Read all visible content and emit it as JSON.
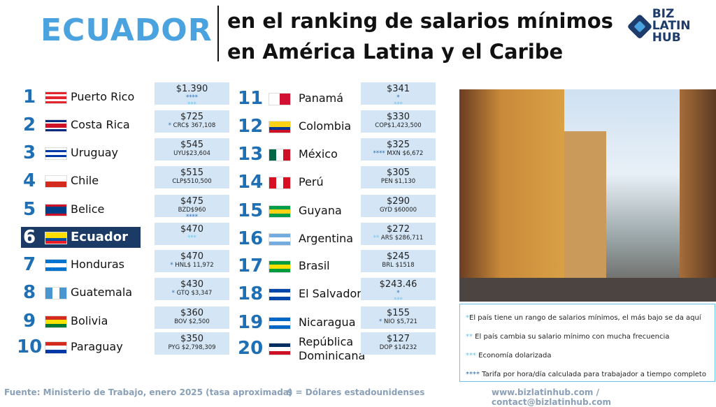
{
  "header": {
    "country": "ECUADOR",
    "subtitle_line1": "en el ranking de salarios mínimos",
    "subtitle_line2": "en América Latina y el Caribe",
    "logo_line1": "BIZ LATIN",
    "logo_line2": "HUB"
  },
  "accent_color": "#4aa3df",
  "highlight_color": "#1b3a66",
  "ranking": [
    {
      "rank": "1",
      "country": "Puerto Rico",
      "usd": "$1.390",
      "local": "",
      "stars_a": "****",
      "stars_b": "***",
      "flag": [
        "#e3262e",
        "#fff",
        "#e3262e",
        "#fff",
        "#e3262e"
      ]
    },
    {
      "rank": "2",
      "country": "Costa Rica",
      "usd": "$725",
      "local": "CRC$ 367,108",
      "stars_pre": "*",
      "flag": [
        "#002b7f",
        "#fff",
        "#ce1126",
        "#ce1126",
        "#fff",
        "#002b7f"
      ]
    },
    {
      "rank": "3",
      "country": "Uruguay",
      "usd": "$545",
      "local": "UYU$23,604",
      "flag": [
        "#fff",
        "#0038a8",
        "#fff",
        "#0038a8",
        "#fff"
      ]
    },
    {
      "rank": "4",
      "country": "Chile",
      "usd": "$515",
      "local": "CLP$510,500",
      "flag": [
        "#fff",
        "#d52b1e"
      ]
    },
    {
      "rank": "5",
      "country": "Belice",
      "usd": "$475",
      "local": "BZD$960",
      "stars_a": "****",
      "flag": [
        "#ce1126",
        "#003f87",
        "#003f87",
        "#003f87",
        "#ce1126"
      ]
    },
    {
      "rank": "6",
      "country": "Ecuador",
      "usd": "$470",
      "local": "",
      "stars_b": "***",
      "flag": [
        "#ffdd00",
        "#ffdd00",
        "#034ea2",
        "#ed1c24"
      ]
    },
    {
      "rank": "7",
      "country": "Honduras",
      "usd": "$470",
      "local": "HNL$ 11,972",
      "stars_pre": "*",
      "flag": [
        "#0073cf",
        "#fff",
        "#0073cf"
      ]
    },
    {
      "rank": "8",
      "country": "Guatemala",
      "usd": "$430",
      "local": "GTQ $3,347",
      "stars_pre": "*",
      "flag": [
        "#4997d0"
      ],
      "vflag": [
        "#4997d0",
        "#fff",
        "#4997d0"
      ]
    },
    {
      "rank": "9",
      "country": "Bolivia",
      "usd": "$360",
      "local": "BOV $2,500",
      "flag": [
        "#d52b1e",
        "#f9e300",
        "#007934"
      ]
    },
    {
      "rank": "10",
      "country": "Paraguay",
      "usd": "$350",
      "local": "PYG $2,798,309",
      "flag": [
        "#d52b1e",
        "#fff",
        "#0038a8"
      ]
    },
    {
      "rank": "11",
      "country": "Panamá",
      "usd": "$341",
      "local": "",
      "stars_a": "*",
      "stars_b": "***",
      "flag": [
        "#fff",
        "#d21034"
      ],
      "vflag": [
        "#fff",
        "#d21034"
      ]
    },
    {
      "rank": "12",
      "country": "Colombia",
      "usd": "$330",
      "local": "COP$1,423,500",
      "flag": [
        "#fcd116",
        "#fcd116",
        "#003893",
        "#ce1126"
      ]
    },
    {
      "rank": "13",
      "country": "México",
      "usd": "$325",
      "local": "MXN $6,672",
      "stars_pre": "****",
      "flag": [
        "#006847"
      ],
      "vflag": [
        "#006847",
        "#fff",
        "#ce1126"
      ]
    },
    {
      "rank": "14",
      "country": "Perú",
      "usd": "$305",
      "local": "PEN $1,130",
      "flag": [
        "#d91023"
      ],
      "vflag": [
        "#d91023",
        "#fff",
        "#d91023"
      ]
    },
    {
      "rank": "15",
      "country": "Guyana",
      "usd": "$290",
      "local": "GYD $60000",
      "flag": [
        "#009e49",
        "#fcd116",
        "#009e49"
      ]
    },
    {
      "rank": "16",
      "country": "Argentina",
      "usd": "$272",
      "local": "ARS $286,711",
      "stars_pre": "**",
      "flag": [
        "#74acdf",
        "#fff",
        "#74acdf"
      ]
    },
    {
      "rank": "17",
      "country": "Brasil",
      "usd": "$245",
      "local": "BRL $1518",
      "flag": [
        "#009c3b",
        "#ffdf00",
        "#009c3b"
      ]
    },
    {
      "rank": "18",
      "country": "El Salvador",
      "usd": "$243.46",
      "local": "",
      "stars_a": "*",
      "stars_b": "***",
      "flag": [
        "#0047ab",
        "#fff",
        "#0047ab"
      ]
    },
    {
      "rank": "19",
      "country": "Nicaragua",
      "usd": "$155",
      "local": "NIO  $5,721",
      "stars_pre": "*",
      "flag": [
        "#0067c6",
        "#fff",
        "#0067c6"
      ]
    },
    {
      "rank": "20",
      "country": "República Dominicana",
      "usd": "$127",
      "local": "DOP $14232",
      "flag": [
        "#002d62",
        "#fff",
        "#ce1126"
      ]
    }
  ],
  "legend": [
    {
      "marker": "*",
      "text": "El país tiene un rango de salarios mínimos, el más bajo se da aquí"
    },
    {
      "marker": "**",
      "text": " El país cambia su salario mínimo con mucha frecuencia"
    },
    {
      "marker": "***",
      "text": " Economía dolarizada"
    },
    {
      "marker": "****",
      "text": " Tarifa por hora/día calculada para trabajador a tiempo completo"
    }
  ],
  "footer": {
    "source": "Fuente: Ministerio de Trabajo, enero 2025 (tasa aproximada)",
    "currency_note": "$ = Dólares estadounidenses",
    "contact": "www.bizlatinhub.com / contact@bizlatinhub.com"
  }
}
